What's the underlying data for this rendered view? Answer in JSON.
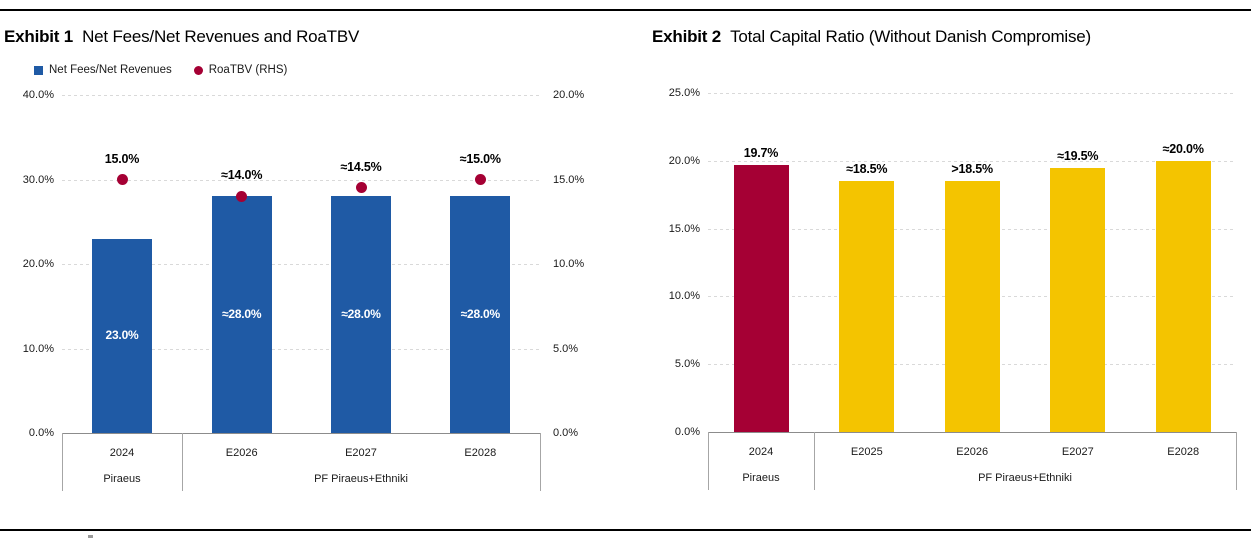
{
  "page": {
    "background": "#FFFFFF",
    "top_rule_color": "#000000",
    "bottom_rule_color": "#000000"
  },
  "charts": [
    {
      "exhibit": "Exhibit 1",
      "title": "Net Fees/Net Revenues and RoaTBV",
      "legend": [
        {
          "label": "Net Fees/Net Revenues",
          "marker": "square",
          "color": "#1F5AA5"
        },
        {
          "label": "RoaTBV (RHS)",
          "marker": "circle",
          "color": "#A50034"
        }
      ],
      "chart_data": {
        "type": "bar",
        "subtype": "bar-with-scatter-overlay",
        "categories": [
          "2024",
          "E2026",
          "E2027",
          "E2028"
        ],
        "category_groups": [
          {
            "label": "Piraeus",
            "cols": 1
          },
          {
            "label": "PF Piraeus+Ethniki",
            "cols": 3
          }
        ],
        "left_axis": {
          "min": 0,
          "max": 40,
          "tick_values": [
            40,
            30,
            20,
            10,
            0
          ],
          "tick_labels": [
            "40.0%",
            "30.0%",
            "20.0%",
            "10.0%",
            "0.0%"
          ]
        },
        "right_axis": {
          "min": 0,
          "max": 20,
          "tick_values": [
            20,
            15,
            10,
            5,
            0
          ],
          "tick_labels": [
            "20.0%",
            "15.0%",
            "10.0%",
            "5.0%",
            "0.0%"
          ]
        },
        "grid": "horizontal-dashed",
        "legend_position": "top-left",
        "series": [
          {
            "name": "Net Fees/Net Revenues",
            "type": "bar",
            "axis": "left",
            "color": "#1F5AA5",
            "values": [
              23.0,
              28.0,
              28.0,
              28.0
            ],
            "point_labels": [
              "23.0%",
              "≈28.0%",
              "≈28.0%",
              "≈28.0%"
            ],
            "label_position": "inside",
            "label_color": "#FFFFFF"
          },
          {
            "name": "RoaTBV (RHS)",
            "type": "scatter",
            "axis": "right",
            "color": "#A50034",
            "values": [
              15.0,
              14.0,
              14.5,
              15.0
            ],
            "point_labels": [
              "15.0%",
              "≈14.0%",
              "≈14.5%",
              "≈15.0%"
            ],
            "label_position": "above",
            "label_color": "#000000"
          }
        ]
      }
    },
    {
      "exhibit": "Exhibit 2",
      "title": "Total Capital Ratio (Without Danish Compromise)",
      "legend": [],
      "chart_data": {
        "type": "bar",
        "categories": [
          "2024",
          "E2025",
          "E2026",
          "E2027",
          "E2028"
        ],
        "category_groups": [
          {
            "label": "Piraeus",
            "cols": 1
          },
          {
            "label": "PF Piraeus+Ethniki",
            "cols": 4
          }
        ],
        "left_axis": {
          "min": 0,
          "max": 25,
          "tick_values": [
            25,
            20,
            15,
            10,
            5,
            0
          ],
          "tick_labels": [
            "25.0%",
            "20.0%",
            "15.0%",
            "10.0%",
            "5.0%",
            "0.0%"
          ]
        },
        "grid": "horizontal-dashed",
        "series": [
          {
            "name": "Total Capital Ratio",
            "type": "bar",
            "axis": "left",
            "colors": [
              "#A50034",
              "#F4C400",
              "#F4C400",
              "#F4C400",
              "#F4C400"
            ],
            "values": [
              19.7,
              18.5,
              18.5,
              19.5,
              20.0
            ],
            "point_labels": [
              "19.7%",
              "≈18.5%",
              ">18.5%",
              "≈19.5%",
              "≈20.0%"
            ],
            "label_position": "above",
            "label_color": "#000000"
          }
        ]
      }
    }
  ]
}
